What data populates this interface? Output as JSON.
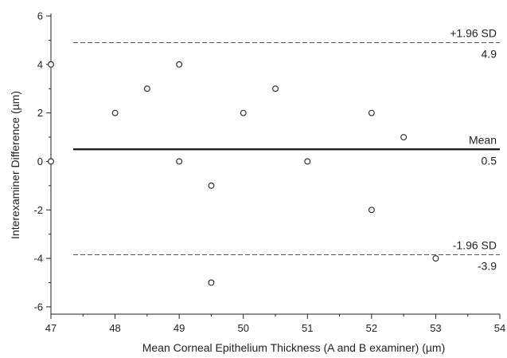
{
  "chart_data": {
    "type": "scatter",
    "title": "",
    "xlabel": "Mean Corneal Epithelium Thickness (A and B examiner) (µm)",
    "ylabel": "Interexaminer Difference (µm)",
    "xlim": [
      47,
      54
    ],
    "ylim": [
      -6.3,
      6.1
    ],
    "xticks": [
      47,
      48,
      49,
      50,
      51,
      52,
      53,
      54
    ],
    "yticks": [
      -6,
      -4,
      -2,
      0,
      2,
      4,
      6
    ],
    "xtick_labels": [
      "47",
      "48",
      "49",
      "50",
      "51",
      "52",
      "53",
      "54"
    ],
    "ytick_labels": [
      "-6",
      "-4",
      "-2",
      "0",
      "2",
      "4",
      "6"
    ],
    "grid": false,
    "points": [
      {
        "x": 47,
        "y": 4
      },
      {
        "x": 47,
        "y": 0
      },
      {
        "x": 48,
        "y": 2
      },
      {
        "x": 48.5,
        "y": 3
      },
      {
        "x": 49,
        "y": 4
      },
      {
        "x": 49,
        "y": 0
      },
      {
        "x": 49.5,
        "y": -1
      },
      {
        "x": 49.5,
        "y": -5
      },
      {
        "x": 50,
        "y": 2
      },
      {
        "x": 50.5,
        "y": 3
      },
      {
        "x": 51,
        "y": 0
      },
      {
        "x": 52,
        "y": 2
      },
      {
        "x": 52,
        "y": -2
      },
      {
        "x": 52.5,
        "y": 1
      },
      {
        "x": 53,
        "y": -4
      }
    ],
    "reference_lines": [
      {
        "id": "upper-loa",
        "y": 4.9,
        "style": "dashed",
        "label": "+1.96 SD",
        "value_label": "4.9"
      },
      {
        "id": "mean",
        "y": 0.5,
        "style": "solid",
        "label": "Mean",
        "value_label": "0.5"
      },
      {
        "id": "lower-loa",
        "y": -3.85,
        "style": "dashed",
        "label": "-1.96 SD",
        "value_label": "-3.9"
      }
    ]
  }
}
